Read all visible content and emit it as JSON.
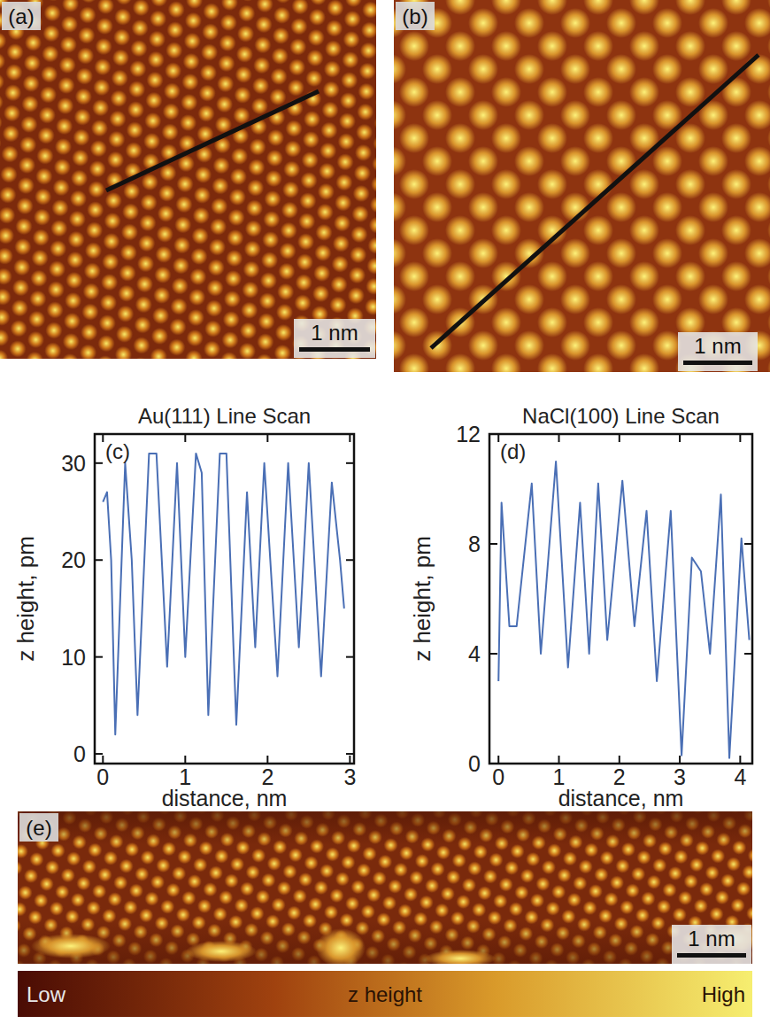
{
  "chart_data": [
    {
      "type": "image",
      "panel": "(a)",
      "scale_bar": "1 nm"
    },
    {
      "type": "image",
      "panel": "(b)",
      "scale_bar": "1 nm"
    },
    {
      "type": "line",
      "title": "Au(111) Line Scan",
      "panel": "(c)",
      "x_label": "distance, nm",
      "y_label": "z height, pm",
      "x": [
        0,
        0.05,
        0.1,
        0.15,
        0.27,
        0.35,
        0.42,
        0.56,
        0.65,
        0.78,
        0.9,
        1.0,
        1.13,
        1.2,
        1.28,
        1.42,
        1.5,
        1.62,
        1.75,
        1.85,
        1.96,
        2.12,
        2.25,
        2.38,
        2.5,
        2.65,
        2.78,
        2.88,
        2.93
      ],
      "values": [
        26,
        27,
        20,
        2,
        30,
        20,
        4,
        31,
        31,
        9,
        30,
        10,
        31,
        29,
        4,
        31,
        31,
        3,
        27,
        11,
        30,
        8,
        30,
        11,
        30,
        8,
        28,
        20,
        15
      ],
      "color": "#4a6fb5",
      "xlim": [
        -0.1,
        3.05
      ],
      "ylim": [
        -1,
        33
      ],
      "xticks": [
        0,
        1,
        2,
        3
      ],
      "yticks": [
        0,
        10,
        20,
        30
      ]
    },
    {
      "type": "line",
      "title": "NaCl(100) Line Scan",
      "panel": "(d)",
      "x_label": "distance, nm",
      "y_label": "z height, pm",
      "x": [
        0,
        0.05,
        0.18,
        0.3,
        0.55,
        0.7,
        0.95,
        1.15,
        1.35,
        1.5,
        1.65,
        1.8,
        2.05,
        2.25,
        2.45,
        2.62,
        2.85,
        3.03,
        3.2,
        3.35,
        3.5,
        3.68,
        3.82,
        4.02,
        4.15
      ],
      "values": [
        3,
        9.5,
        5,
        5,
        10.2,
        4,
        11,
        3.5,
        9.5,
        4,
        10.2,
        4.5,
        10.3,
        5,
        9.2,
        3,
        9.2,
        0.3,
        7.5,
        7,
        4,
        9.8,
        0.2,
        8.2,
        4.5
      ],
      "color": "#4a6fb5",
      "xlim": [
        -0.15,
        4.2
      ],
      "ylim": [
        0,
        12
      ],
      "xticks": [
        0,
        1,
        2,
        3,
        4
      ],
      "yticks": [
        0,
        4,
        8,
        12
      ]
    },
    {
      "type": "image",
      "panel": "(e)",
      "scale_bar": "1 nm",
      "colorbar": {
        "low": "Low",
        "title": "z height",
        "high": "High"
      }
    }
  ]
}
